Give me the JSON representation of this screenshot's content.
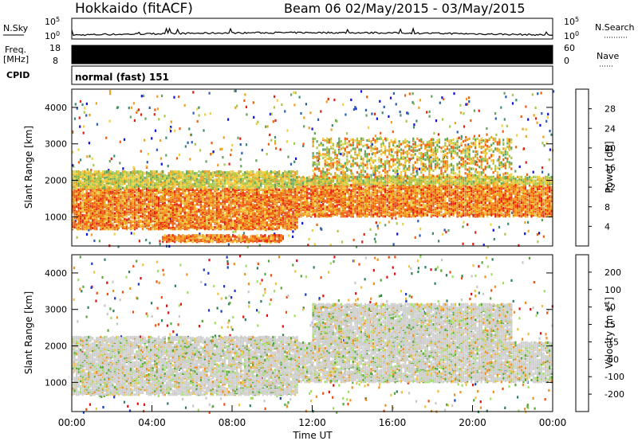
{
  "header": {
    "station": "Hokkaido (fitACF)",
    "beam_and_dates": "Beam 06 02/May/2015 - 03/May/2015"
  },
  "noise_panel": {
    "left_label": "N.Sky",
    "right_label": "N.Search",
    "tick_top": "10^5",
    "tick_bottom": "10^0"
  },
  "freq_panel": {
    "left_label_top": "Freq.",
    "left_label_bottom": "[MHz]",
    "left_ticks": [
      "18",
      "8"
    ],
    "right_ticks": [
      "60",
      "0"
    ],
    "right_label": "Nave"
  },
  "cpid_panel": {
    "label": "CPID",
    "mode_text": "normal (fast) 151"
  },
  "chart_data": [
    {
      "type": "heatmap",
      "ylabel": "Slant Range [km]",
      "y_ticks": [
        "1000",
        "2000",
        "3000",
        "4000"
      ],
      "ylim": [
        200,
        4500
      ],
      "xlim": [
        0,
        24
      ],
      "colorbar": {
        "title": "Power [dB]",
        "ticks": [
          "4",
          "8",
          "12",
          "16",
          "20",
          "24",
          "28"
        ],
        "range": [
          0,
          30
        ],
        "colors": [
          "#1010e0",
          "#2a5fb0",
          "#3d8c70",
          "#63a35a",
          "#a8c84a",
          "#f0d040",
          "#f0a020",
          "#f06010",
          "#e82010"
        ]
      },
      "bands": [
        {
          "t0": 0,
          "t1": 11.2,
          "lo": 700,
          "hi": 2300,
          "kind": "power-strong"
        },
        {
          "t0": 11.2,
          "t1": 24,
          "lo": 1050,
          "hi": 2150,
          "kind": "power-strong"
        },
        {
          "t0": 12,
          "t1": 22,
          "lo": 2100,
          "hi": 3200,
          "kind": "power-mid"
        },
        {
          "t0": 4.5,
          "t1": 10.5,
          "lo": 350,
          "hi": 550,
          "kind": "power-strong"
        }
      ]
    },
    {
      "type": "heatmap",
      "xlabel": "Time UT",
      "x_ticks": [
        "00:00",
        "04:00",
        "08:00",
        "12:00",
        "16:00",
        "20:00",
        "00:00"
      ],
      "ylabel": "Slant Range [km]",
      "y_ticks": [
        "1000",
        "2000",
        "3000",
        "4000"
      ],
      "ylim": [
        200,
        4500
      ],
      "xlim": [
        0,
        24
      ],
      "colorbar": {
        "title": "Velocity [m s^-1]",
        "ticks": [
          "200",
          "100",
          "50",
          "15",
          "-15",
          "-50",
          "-100",
          "-200"
        ],
        "range": [
          -250,
          250
        ],
        "colors": [
          "#1838c8",
          "#2f7f5a",
          "#5aa83c",
          "#a0e060",
          "#c8c8c8",
          "#f0c040",
          "#f09020",
          "#f05010",
          "#e01010"
        ]
      },
      "bands": [
        {
          "t0": 0,
          "t1": 11.2,
          "lo": 700,
          "hi": 2300,
          "kind": "vel-ground"
        },
        {
          "t0": 11.2,
          "t1": 24,
          "lo": 1050,
          "hi": 2150,
          "kind": "vel-ground"
        },
        {
          "t0": 12,
          "t1": 22,
          "lo": 2100,
          "hi": 3200,
          "kind": "vel-ground"
        }
      ]
    }
  ]
}
